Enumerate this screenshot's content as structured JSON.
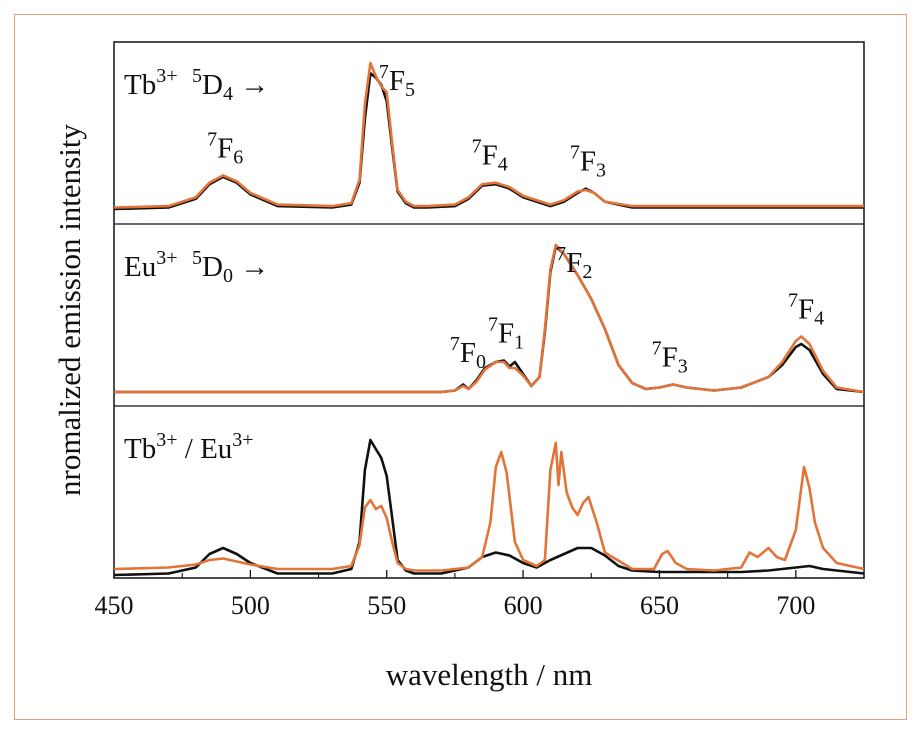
{
  "chart_data": {
    "type": "line",
    "xlabel": "wavelength / nm",
    "ylabel": "nromalized emission intensity",
    "xlim": [
      450,
      725
    ],
    "xticks": [
      450,
      500,
      550,
      600,
      650,
      700
    ],
    "colors": {
      "black": "#111111",
      "orange": "#e2743a"
    },
    "grid": false,
    "panels": [
      {
        "name": "tb",
        "label": {
          "ion": "Tb",
          "charge": "3+",
          "state": "5",
          "level": "D",
          "level_sub": "4",
          "arrow": "→"
        },
        "annotations": [
          {
            "sup": "7",
            "base": "F",
            "sub": "6",
            "x": 490
          },
          {
            "sup": "7",
            "base": "F",
            "sub": "5",
            "x": 553
          },
          {
            "sup": "7",
            "base": "F",
            "sub": "4",
            "x": 587
          },
          {
            "sup": "7",
            "base": "F",
            "sub": "3",
            "x": 623
          }
        ],
        "series": [
          {
            "color": "black",
            "x": [
              450,
              470,
              480,
              485,
              490,
              495,
              500,
              510,
              530,
              537,
              540,
              542,
              544,
              546,
              548,
              550,
              552,
              554,
              557,
              560,
              565,
              575,
              580,
              585,
              590,
              595,
              600,
              610,
              615,
              620,
              623,
              626,
              630,
              640,
              700,
              725
            ],
            "y": [
              0.0,
              0.01,
              0.07,
              0.17,
              0.22,
              0.18,
              0.1,
              0.02,
              0.01,
              0.03,
              0.18,
              0.62,
              0.93,
              0.9,
              0.85,
              0.74,
              0.42,
              0.12,
              0.04,
              0.01,
              0.01,
              0.02,
              0.07,
              0.16,
              0.17,
              0.14,
              0.08,
              0.02,
              0.05,
              0.11,
              0.14,
              0.11,
              0.05,
              0.01,
              0.01,
              0.01
            ]
          },
          {
            "color": "orange",
            "x": [
              450,
              470,
              480,
              485,
              490,
              495,
              500,
              510,
              530,
              537,
              540,
              542,
              544,
              546,
              548,
              550,
              552,
              554,
              557,
              560,
              565,
              575,
              580,
              585,
              590,
              595,
              600,
              610,
              615,
              620,
              623,
              626,
              630,
              640,
              700,
              725
            ],
            "y": [
              0.01,
              0.02,
              0.08,
              0.18,
              0.23,
              0.19,
              0.11,
              0.03,
              0.02,
              0.04,
              0.2,
              0.72,
              1.0,
              0.91,
              0.84,
              0.8,
              0.45,
              0.13,
              0.05,
              0.02,
              0.02,
              0.03,
              0.08,
              0.17,
              0.18,
              0.15,
              0.09,
              0.03,
              0.06,
              0.12,
              0.13,
              0.11,
              0.05,
              0.02,
              0.02,
              0.02
            ]
          }
        ]
      },
      {
        "name": "eu",
        "label": {
          "ion": "Eu",
          "charge": "3+",
          "state": "5",
          "level": "D",
          "level_sub": "0",
          "arrow": "→"
        },
        "annotations": [
          {
            "sup": "7",
            "base": "F",
            "sub": "0",
            "x": 579
          },
          {
            "sup": "7",
            "base": "F",
            "sub": "1",
            "x": 593
          },
          {
            "sup": "7",
            "base": "F",
            "sub": "2",
            "x": 618
          },
          {
            "sup": "7",
            "base": "F",
            "sub": "3",
            "x": 653
          },
          {
            "sup": "7",
            "base": "F",
            "sub": "4",
            "x": 703
          }
        ],
        "series": [
          {
            "color": "black",
            "x": [
              450,
              570,
              575,
              578,
              580,
              583,
              586,
              590,
              593,
              595,
              597,
              600,
              603,
              606,
              608,
              610,
              612,
              615,
              620,
              625,
              630,
              635,
              640,
              645,
              650,
              655,
              660,
              670,
              680,
              690,
              695,
              700,
              702,
              705,
              710,
              715,
              725
            ],
            "y": [
              0.0,
              0.0,
              0.01,
              0.05,
              0.02,
              0.08,
              0.16,
              0.2,
              0.21,
              0.17,
              0.2,
              0.12,
              0.04,
              0.1,
              0.4,
              0.8,
              0.97,
              0.92,
              0.78,
              0.62,
              0.42,
              0.18,
              0.06,
              0.02,
              0.03,
              0.05,
              0.03,
              0.01,
              0.03,
              0.1,
              0.18,
              0.3,
              0.32,
              0.28,
              0.12,
              0.02,
              0.0
            ]
          },
          {
            "color": "orange",
            "x": [
              450,
              570,
              575,
              578,
              580,
              583,
              586,
              590,
              593,
              595,
              597,
              600,
              603,
              606,
              608,
              610,
              612,
              615,
              620,
              625,
              630,
              635,
              640,
              645,
              650,
              655,
              660,
              670,
              680,
              690,
              695,
              700,
              702,
              705,
              710,
              715,
              725
            ],
            "y": [
              0.0,
              0.0,
              0.01,
              0.04,
              0.02,
              0.07,
              0.15,
              0.2,
              0.2,
              0.16,
              0.16,
              0.11,
              0.04,
              0.1,
              0.42,
              0.82,
              0.98,
              0.92,
              0.78,
              0.62,
              0.42,
              0.18,
              0.06,
              0.02,
              0.03,
              0.05,
              0.03,
              0.01,
              0.03,
              0.1,
              0.2,
              0.34,
              0.37,
              0.32,
              0.14,
              0.03,
              0.0
            ]
          }
        ]
      },
      {
        "name": "tbeu",
        "label": {
          "ion": "Tb",
          "charge": "3+",
          "separator": " / ",
          "ion2": "Eu",
          "charge2": "3+"
        },
        "annotations": [],
        "series": [
          {
            "color": "black",
            "x": [
              450,
              470,
              480,
              485,
              490,
              495,
              500,
              510,
              530,
              537,
              540,
              542,
              544,
              546,
              548,
              550,
              552,
              554,
              557,
              560,
              570,
              580,
              585,
              590,
              595,
              600,
              605,
              610,
              615,
              620,
              625,
              630,
              635,
              640,
              650,
              660,
              680,
              690,
              700,
              705,
              710,
              725
            ],
            "y": [
              0.0,
              0.01,
              0.05,
              0.14,
              0.18,
              0.14,
              0.08,
              0.01,
              0.01,
              0.04,
              0.22,
              0.7,
              0.9,
              0.84,
              0.78,
              0.66,
              0.38,
              0.1,
              0.03,
              0.01,
              0.01,
              0.05,
              0.12,
              0.15,
              0.13,
              0.08,
              0.05,
              0.1,
              0.14,
              0.18,
              0.18,
              0.13,
              0.06,
              0.03,
              0.02,
              0.02,
              0.02,
              0.03,
              0.05,
              0.06,
              0.04,
              0.01
            ]
          },
          {
            "color": "orange",
            "x": [
              450,
              470,
              480,
              485,
              490,
              495,
              500,
              510,
              530,
              537,
              540,
              542,
              544,
              546,
              548,
              550,
              552,
              554,
              557,
              560,
              570,
              580,
              585,
              588,
              590,
              592,
              594,
              597,
              600,
              605,
              608,
              610,
              612,
              613,
              614,
              616,
              618,
              620,
              622,
              624,
              627,
              630,
              640,
              648,
              651,
              653,
              656,
              660,
              670,
              680,
              683,
              686,
              690,
              693,
              696,
              700,
              703,
              705,
              707,
              710,
              715,
              725
            ],
            "y": [
              0.04,
              0.05,
              0.07,
              0.1,
              0.11,
              0.09,
              0.07,
              0.04,
              0.04,
              0.06,
              0.2,
              0.45,
              0.5,
              0.44,
              0.46,
              0.38,
              0.22,
              0.08,
              0.04,
              0.03,
              0.03,
              0.05,
              0.12,
              0.35,
              0.72,
              0.82,
              0.68,
              0.22,
              0.1,
              0.06,
              0.1,
              0.7,
              0.88,
              0.6,
              0.82,
              0.55,
              0.45,
              0.4,
              0.48,
              0.52,
              0.35,
              0.15,
              0.04,
              0.04,
              0.14,
              0.16,
              0.08,
              0.04,
              0.03,
              0.05,
              0.15,
              0.12,
              0.18,
              0.12,
              0.1,
              0.3,
              0.72,
              0.58,
              0.35,
              0.18,
              0.08,
              0.04
            ]
          }
        ]
      }
    ]
  }
}
